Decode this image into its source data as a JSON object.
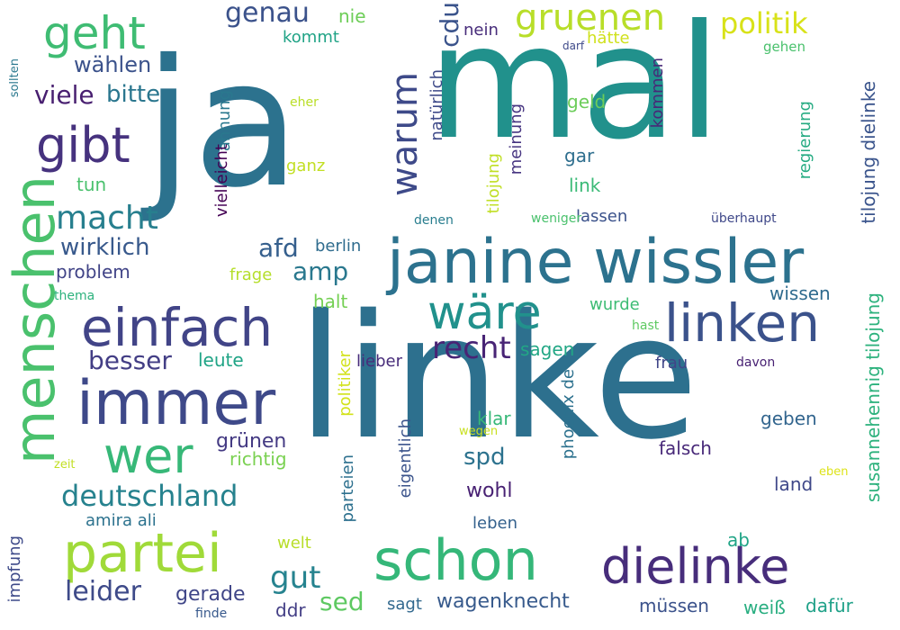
{
  "words": [
    {
      "text": "linke",
      "color": "#2d708e"
    },
    {
      "text": "mal",
      "color": "#21918c"
    },
    {
      "text": "ja",
      "color": "#2c728e"
    },
    {
      "text": "janine wissler",
      "color": "#2c728e"
    },
    {
      "text": "schon",
      "color": "#35b779"
    },
    {
      "text": "dielinke",
      "color": "#472d7b"
    },
    {
      "text": "immer",
      "color": "#3e4989"
    },
    {
      "text": "partei",
      "color": "#a0da39"
    },
    {
      "text": "linken",
      "color": "#3b528b"
    },
    {
      "text": "einfach",
      "color": "#414487"
    },
    {
      "text": "menschen",
      "color": "#4ac16d"
    },
    {
      "text": "wer",
      "color": "#37b878"
    },
    {
      "text": "geht",
      "color": "#3fbc73"
    },
    {
      "text": "gibt",
      "color": "#46327e"
    },
    {
      "text": "wäre",
      "color": "#21918c"
    },
    {
      "text": "warum",
      "color": "#3e4a89"
    },
    {
      "text": "gruenen",
      "color": "#b8de29"
    },
    {
      "text": "macht",
      "color": "#277f8e"
    },
    {
      "text": "deutschland",
      "color": "#26828e"
    },
    {
      "text": "gut",
      "color": "#26838f"
    },
    {
      "text": "recht",
      "color": "#482475"
    },
    {
      "text": "politik",
      "color": "#d8e219"
    },
    {
      "text": "genau",
      "color": "#3b528b"
    },
    {
      "text": "leider",
      "color": "#3e4a89"
    },
    {
      "text": "besser",
      "color": "#433e85"
    },
    {
      "text": "amp",
      "color": "#2a788e"
    },
    {
      "text": "afd",
      "color": "#355f8d"
    },
    {
      "text": "wirklich",
      "color": "#38598c"
    },
    {
      "text": "viele",
      "color": "#481f70"
    },
    {
      "text": "bitte",
      "color": "#2a768e"
    },
    {
      "text": "wählen",
      "color": "#3b528b"
    },
    {
      "text": "spd",
      "color": "#2c728e"
    },
    {
      "text": "sed",
      "color": "#5ec962"
    },
    {
      "text": "wagenknecht",
      "color": "#375a8c"
    },
    {
      "text": "grünen",
      "color": "#443a83"
    },
    {
      "text": "richtig",
      "color": "#7ad151"
    },
    {
      "text": "wohl",
      "color": "#482173"
    },
    {
      "text": "gerade",
      "color": "#404688"
    },
    {
      "text": "problem",
      "color": "#414487"
    },
    {
      "text": "leute",
      "color": "#20a486"
    },
    {
      "text": "sagen",
      "color": "#22a785"
    },
    {
      "text": "berlin",
      "color": "#2f6c8e"
    },
    {
      "text": "halt",
      "color": "#75d054"
    },
    {
      "text": "wurde",
      "color": "#3dbc74"
    },
    {
      "text": "frage",
      "color": "#b5de2b"
    },
    {
      "text": "lassen",
      "color": "#3b528b"
    },
    {
      "text": "leben",
      "color": "#34618d"
    },
    {
      "text": "geld",
      "color": "#6ccd5a"
    },
    {
      "text": "gar",
      "color": "#2e6e8e"
    },
    {
      "text": "link",
      "color": "#3aba76"
    },
    {
      "text": "ganz",
      "color": "#c2df23"
    },
    {
      "text": "nie",
      "color": "#6ece58"
    },
    {
      "text": "kommt",
      "color": "#20a386"
    },
    {
      "text": "hätte",
      "color": "#d0e11c"
    },
    {
      "text": "nein",
      "color": "#472c7a"
    },
    {
      "text": "cdu",
      "color": "#3a538b"
    },
    {
      "text": "tun",
      "color": "#4ac16d"
    },
    {
      "text": "wissen",
      "color": "#2f6b8e"
    },
    {
      "text": "klar",
      "color": "#37b878"
    },
    {
      "text": "geben",
      "color": "#32658e"
    },
    {
      "text": "falsch",
      "color": "#482979"
    },
    {
      "text": "land",
      "color": "#3f4889"
    },
    {
      "text": "frau",
      "color": "#404588"
    },
    {
      "text": "lieber",
      "color": "#472c7a"
    },
    {
      "text": "müssen",
      "color": "#3b528b"
    },
    {
      "text": "dafür",
      "color": "#1fa188"
    },
    {
      "text": "weiß",
      "color": "#28ae80"
    },
    {
      "text": "ab",
      "color": "#20a486"
    },
    {
      "text": "welt",
      "color": "#b8de29"
    },
    {
      "text": "sagt",
      "color": "#31688e"
    },
    {
      "text": "ddr",
      "color": "#433e85"
    },
    {
      "text": "amira ali",
      "color": "#2c728e"
    },
    {
      "text": "thema",
      "color": "#2db27d"
    },
    {
      "text": "denen",
      "color": "#287d8e"
    },
    {
      "text": "weniger",
      "color": "#4ac16d"
    },
    {
      "text": "überhaupt",
      "color": "#3f4889"
    },
    {
      "text": "eher",
      "color": "#bade28"
    },
    {
      "text": "darf",
      "color": "#3e4989"
    },
    {
      "text": "gehen",
      "color": "#4ac16d"
    },
    {
      "text": "hast",
      "color": "#5ec962"
    },
    {
      "text": "davon",
      "color": "#482173"
    },
    {
      "text": "wegen",
      "color": "#c8e020"
    },
    {
      "text": "eben",
      "color": "#dde318"
    },
    {
      "text": "zeit",
      "color": "#c2df23"
    },
    {
      "text": "finde",
      "color": "#38598c"
    },
    {
      "text": "ahnung",
      "color": "#2a788e",
      "vertical": true
    },
    {
      "text": "vielleicht",
      "color": "#440154",
      "vertical": true
    },
    {
      "text": "natürlich",
      "color": "#3e4a89",
      "vertical": true
    },
    {
      "text": "tilojung",
      "color": "#c0df25",
      "vertical": true
    },
    {
      "text": "meinung",
      "color": "#463480",
      "vertical": true
    },
    {
      "text": "kommen",
      "color": "#482878",
      "vertical": true
    },
    {
      "text": "regierung",
      "color": "#25ab82",
      "vertical": true
    },
    {
      "text": "tilojung dielinke",
      "color": "#3a548c",
      "vertical": true
    },
    {
      "text": "susannehennig tilojung",
      "color": "#2db27d",
      "vertical": true
    },
    {
      "text": "politiker",
      "color": "#d2e21b",
      "vertical": true
    },
    {
      "text": "parteien",
      "color": "#2d708e",
      "vertical": true
    },
    {
      "text": "eigentlich",
      "color": "#3a538b",
      "vertical": true
    },
    {
      "text": "phoenix de",
      "color": "#2c718e",
      "vertical": true
    },
    {
      "text": "impfung",
      "color": "#3e4a89",
      "vertical": true
    },
    {
      "text": "sollten",
      "color": "#2a788e",
      "vertical": true
    }
  ]
}
